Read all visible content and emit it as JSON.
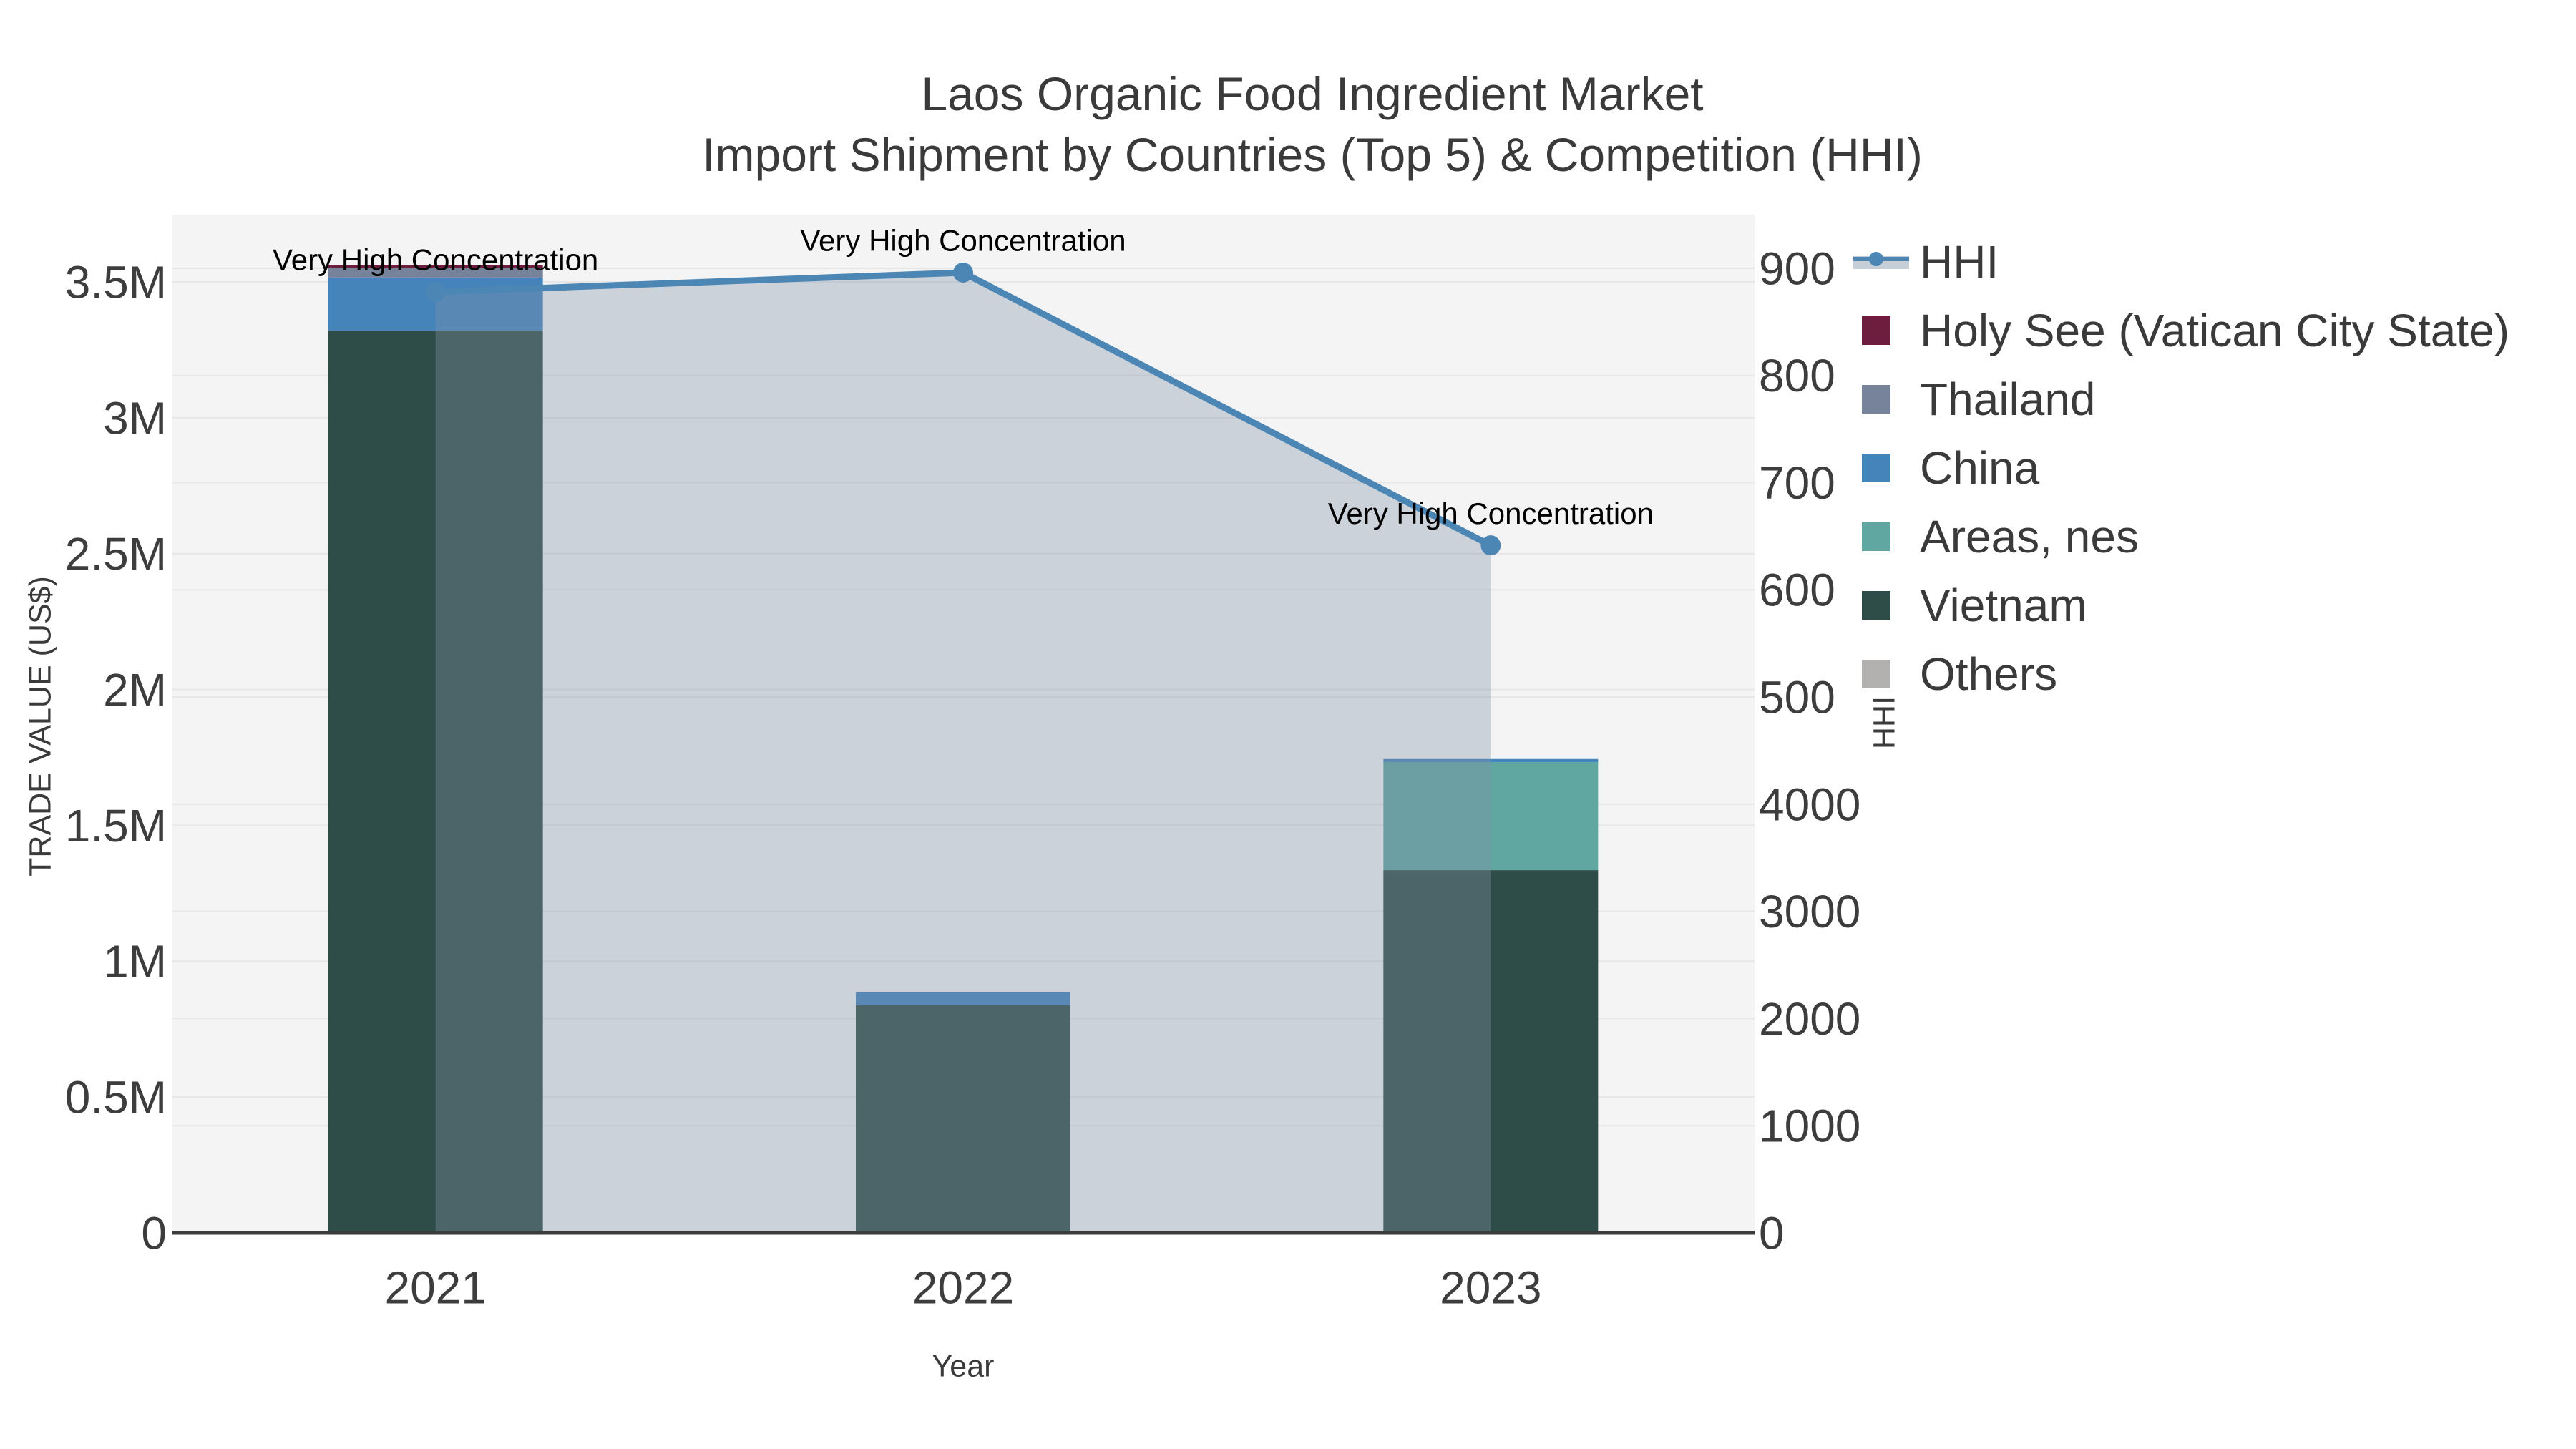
{
  "title": {
    "line1": "Laos Organic Food Ingredient Market",
    "line2": "Import Shipment by Countries (Top 5) & Competition (HHI)"
  },
  "axes": {
    "left": {
      "title": "TRADE VALUE (US$)",
      "ticks": [
        "3.5M",
        "3M",
        "2.5M",
        "2M",
        "1.5M",
        "1M",
        "0.5M",
        "0"
      ]
    },
    "right": {
      "title": "HHI",
      "ticks": [
        "900",
        "800",
        "700",
        "600",
        "500",
        "4000",
        "3000",
        "2000",
        "1000",
        "0"
      ]
    },
    "bottom": {
      "title": "Year",
      "ticks": [
        "2021",
        "2022",
        "2023"
      ]
    }
  },
  "legend": {
    "items": [
      {
        "label": "HHI",
        "type": "line",
        "color": "#4c86b4"
      },
      {
        "label": "Holy See (Vatican City State)",
        "type": "patch",
        "color": "#6d1e3e"
      },
      {
        "label": "Thailand",
        "type": "patch",
        "color": "#76839a"
      },
      {
        "label": "China",
        "type": "patch",
        "color": "#4583bb"
      },
      {
        "label": "Areas, nes",
        "type": "patch",
        "color": "#60a7a2"
      },
      {
        "label": "Vietnam",
        "type": "patch",
        "color": "#2e4d48"
      },
      {
        "label": "Others",
        "type": "patch",
        "color": "#b3b0b0"
      }
    ]
  },
  "chart_data": {
    "type": "combo: stacked-bar + line-area (dual axis)",
    "categories": [
      "2021",
      "2022",
      "2023"
    ],
    "bar_value_unit": "US$ (left axis, TRADE VALUE)",
    "series": [
      {
        "name": "Holy See (Vatican City State)",
        "color": "#6d1e3e",
        "values": [
          13000,
          0,
          0
        ]
      },
      {
        "name": "Thailand",
        "color": "#76839a",
        "values": [
          34000,
          0,
          0
        ]
      },
      {
        "name": "China",
        "color": "#4583bb",
        "values": [
          195000,
          47000,
          11000
        ]
      },
      {
        "name": "Areas, nes",
        "color": "#60a7a2",
        "values": [
          0,
          0,
          398000
        ]
      },
      {
        "name": "Vietnam",
        "color": "#2e4d48",
        "values": [
          3321000,
          838000,
          1335000
        ]
      },
      {
        "name": "Others",
        "color": "#b3b0b0",
        "values": [
          0,
          0,
          0
        ]
      }
    ],
    "stack_order_bottom_to_top": [
      "Vietnam",
      "Areas, nes",
      "China",
      "Thailand",
      "Holy See (Vatican City State)",
      "Others"
    ],
    "bar_totals": [
      3563000,
      885000,
      1744000
    ],
    "line_series": {
      "name": "HHI",
      "color": "#4c86b4",
      "values": [
        8780,
        8960,
        6415
      ],
      "band_fill": "#8092a8",
      "band_opacity": 0.35,
      "marker": "circle"
    },
    "annotations": [
      {
        "text": "Very High Concentration",
        "category": "2021"
      },
      {
        "text": "Very High Concentration",
        "category": "2022"
      },
      {
        "text": "Very High Concentration",
        "category": "2023"
      }
    ],
    "left_axis_range": [
      0,
      3500000
    ],
    "left_axis_tick_step": 500000,
    "right_axis_ticks_rendered": [
      "900",
      "800",
      "700",
      "600",
      "500",
      "4000",
      "3000",
      "2000",
      "1000",
      "0"
    ],
    "xlabel": "Year",
    "grid": true,
    "legend_position": "outside upper right"
  },
  "colors": {
    "figure_bg": "#ffffff",
    "plot_bg": "#f4f4f5",
    "grid": "#e7e7e8",
    "baseline": "#3c3c3c",
    "title_text": "#3a3a3a",
    "tick_text": "#3d3d3d",
    "annotation_text": "#000000"
  }
}
